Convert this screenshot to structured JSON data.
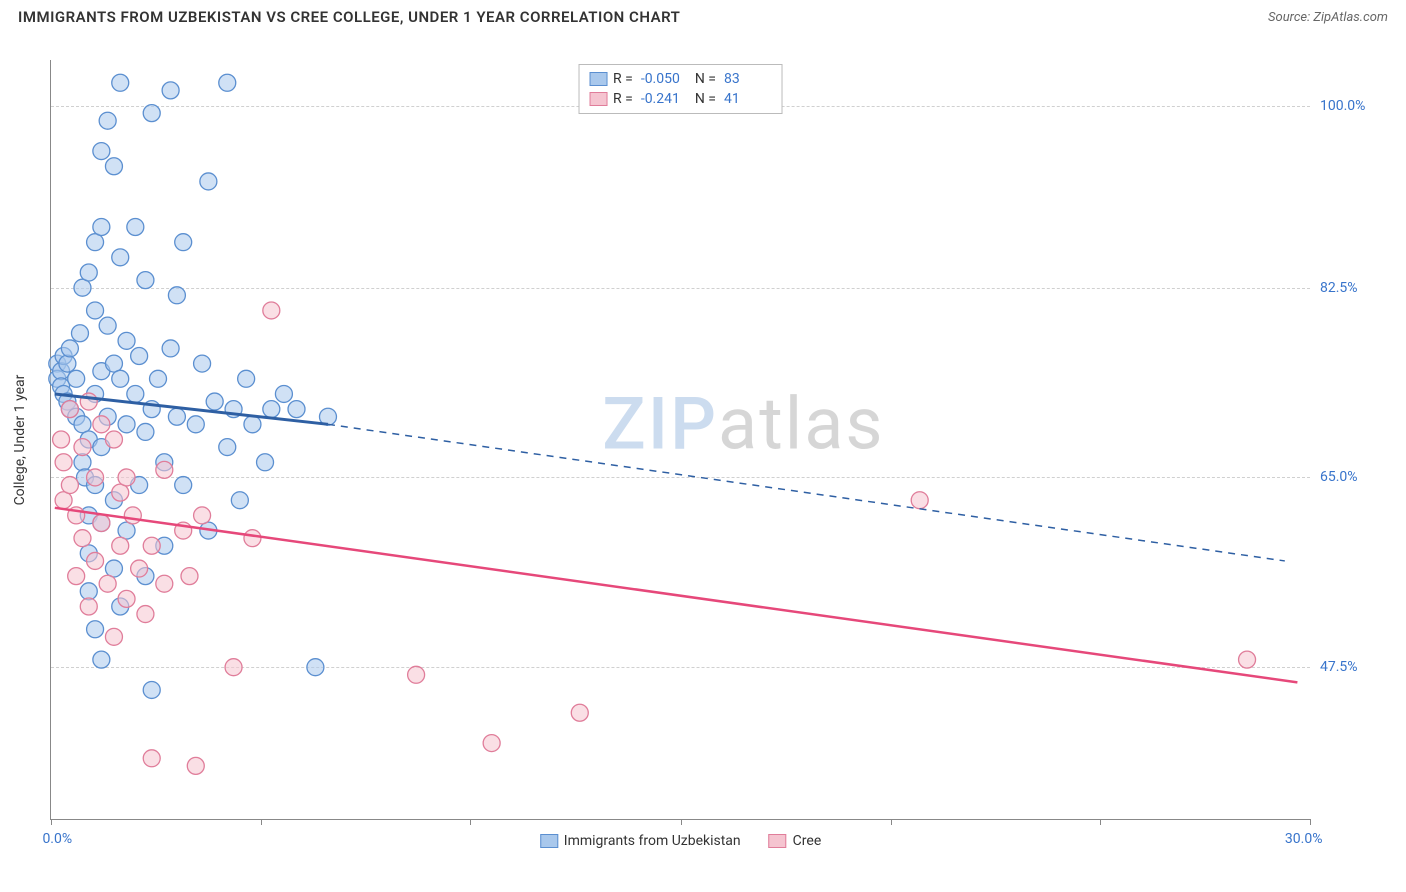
{
  "title": "IMMIGRANTS FROM UZBEKISTAN VS CREE COLLEGE, UNDER 1 YEAR CORRELATION CHART",
  "source": "Source: ZipAtlas.com",
  "ylabel": "College, Under 1 year",
  "watermark": {
    "part1": "ZIP",
    "part2": "atlas"
  },
  "colors": {
    "blue_fill": "#a9c8ec",
    "blue_stroke": "#5b8fd0",
    "blue_line": "#2e5fa3",
    "pink_fill": "#f5c4d0",
    "pink_stroke": "#e07d9a",
    "pink_line": "#e6487a",
    "tick_text": "#3874cb",
    "grid": "#d0d0d0"
  },
  "xaxis": {
    "min": 0.0,
    "max": 30.0,
    "label_min": "0.0%",
    "label_max": "30.0%",
    "ticks_pct": [
      0,
      16.7,
      33.3,
      50,
      66.7,
      83.3,
      100
    ]
  },
  "yaxis": {
    "ticks": [
      {
        "value": 100.0,
        "label": "100.0%",
        "pos_pct": 6.0
      },
      {
        "value": 82.5,
        "label": "82.5%",
        "pos_pct": 30.0
      },
      {
        "value": 65.0,
        "label": "65.0%",
        "pos_pct": 55.0
      },
      {
        "value": 47.5,
        "label": "47.5%",
        "pos_pct": 80.0
      }
    ]
  },
  "legend_top": [
    {
      "color": "blue",
      "r_label": "R =",
      "r": "-0.050",
      "n_label": "N =",
      "n": "83"
    },
    {
      "color": "pink",
      "r_label": "R =",
      "r": "-0.241",
      "n_label": "N =",
      "n": "41"
    }
  ],
  "legend_bottom": [
    {
      "color": "blue",
      "label": "Immigrants from Uzbekistan"
    },
    {
      "color": "pink",
      "label": "Cree"
    }
  ],
  "trend_lines": {
    "blue": {
      "x1_pct": 0.3,
      "y1_pct": 44,
      "x2_pct": 22,
      "y2_pct": 48,
      "x3_pct": 98,
      "y3_pct": 66
    },
    "pink": {
      "x1_pct": 0.3,
      "y1_pct": 59,
      "x2_pct": 99,
      "y2_pct": 82
    }
  },
  "marker": {
    "radius": 8.5,
    "fill_opacity": 0.55,
    "stroke_width": 1.3
  },
  "points_blue": [
    {
      "x": 0.5,
      "y": 40
    },
    {
      "x": 0.5,
      "y": 42
    },
    {
      "x": 0.8,
      "y": 41
    },
    {
      "x": 0.8,
      "y": 43
    },
    {
      "x": 1.0,
      "y": 39
    },
    {
      "x": 1.0,
      "y": 44
    },
    {
      "x": 1.3,
      "y": 40
    },
    {
      "x": 1.3,
      "y": 45
    },
    {
      "x": 1.5,
      "y": 38
    },
    {
      "x": 1.5,
      "y": 46
    },
    {
      "x": 2.0,
      "y": 42
    },
    {
      "x": 2.0,
      "y": 47
    },
    {
      "x": 2.3,
      "y": 36
    },
    {
      "x": 2.5,
      "y": 48
    },
    {
      "x": 2.5,
      "y": 30
    },
    {
      "x": 2.5,
      "y": 53
    },
    {
      "x": 2.7,
      "y": 55
    },
    {
      "x": 3.0,
      "y": 28
    },
    {
      "x": 3.0,
      "y": 50
    },
    {
      "x": 3.0,
      "y": 60
    },
    {
      "x": 3.0,
      "y": 65
    },
    {
      "x": 3.0,
      "y": 70
    },
    {
      "x": 3.5,
      "y": 24
    },
    {
      "x": 3.5,
      "y": 33
    },
    {
      "x": 3.5,
      "y": 44
    },
    {
      "x": 3.5,
      "y": 56
    },
    {
      "x": 3.5,
      "y": 75
    },
    {
      "x": 4.0,
      "y": 12
    },
    {
      "x": 4.0,
      "y": 22
    },
    {
      "x": 4.0,
      "y": 41
    },
    {
      "x": 4.0,
      "y": 51
    },
    {
      "x": 4.0,
      "y": 61
    },
    {
      "x": 4.0,
      "y": 79
    },
    {
      "x": 4.5,
      "y": 8
    },
    {
      "x": 4.5,
      "y": 35
    },
    {
      "x": 4.5,
      "y": 47
    },
    {
      "x": 5.0,
      "y": 14
    },
    {
      "x": 5.0,
      "y": 40
    },
    {
      "x": 5.0,
      "y": 58
    },
    {
      "x": 5.0,
      "y": 67
    },
    {
      "x": 5.5,
      "y": 3
    },
    {
      "x": 5.5,
      "y": 26
    },
    {
      "x": 5.5,
      "y": 42
    },
    {
      "x": 5.5,
      "y": 72
    },
    {
      "x": 6.0,
      "y": 37
    },
    {
      "x": 6.0,
      "y": 48
    },
    {
      "x": 6.0,
      "y": 62
    },
    {
      "x": 6.7,
      "y": 22
    },
    {
      "x": 6.7,
      "y": 44
    },
    {
      "x": 7.0,
      "y": 39
    },
    {
      "x": 7.0,
      "y": 56
    },
    {
      "x": 7.5,
      "y": 29
    },
    {
      "x": 7.5,
      "y": 49
    },
    {
      "x": 7.5,
      "y": 68
    },
    {
      "x": 8.0,
      "y": 7
    },
    {
      "x": 8.0,
      "y": 46
    },
    {
      "x": 8.0,
      "y": 83
    },
    {
      "x": 8.5,
      "y": 42
    },
    {
      "x": 9.0,
      "y": 53
    },
    {
      "x": 9.0,
      "y": 64
    },
    {
      "x": 9.5,
      "y": 4
    },
    {
      "x": 9.5,
      "y": 38
    },
    {
      "x": 10.0,
      "y": 31
    },
    {
      "x": 10.0,
      "y": 47
    },
    {
      "x": 10.5,
      "y": 24
    },
    {
      "x": 10.5,
      "y": 56
    },
    {
      "x": 11.5,
      "y": 48
    },
    {
      "x": 12.0,
      "y": 40
    },
    {
      "x": 12.5,
      "y": 62
    },
    {
      "x": 12.5,
      "y": 16
    },
    {
      "x": 13.0,
      "y": 45
    },
    {
      "x": 14.0,
      "y": 3
    },
    {
      "x": 14.0,
      "y": 51
    },
    {
      "x": 14.5,
      "y": 46
    },
    {
      "x": 15.0,
      "y": 58
    },
    {
      "x": 15.5,
      "y": 42
    },
    {
      "x": 16.0,
      "y": 48
    },
    {
      "x": 17.0,
      "y": 53
    },
    {
      "x": 17.5,
      "y": 46
    },
    {
      "x": 18.5,
      "y": 44
    },
    {
      "x": 19.5,
      "y": 46
    },
    {
      "x": 21.0,
      "y": 80
    },
    {
      "x": 22.0,
      "y": 47
    }
  ],
  "points_pink": [
    {
      "x": 0.8,
      "y": 50
    },
    {
      "x": 1.0,
      "y": 53
    },
    {
      "x": 1.0,
      "y": 58
    },
    {
      "x": 1.5,
      "y": 46
    },
    {
      "x": 1.5,
      "y": 56
    },
    {
      "x": 2.0,
      "y": 60
    },
    {
      "x": 2.0,
      "y": 68
    },
    {
      "x": 2.5,
      "y": 51
    },
    {
      "x": 2.5,
      "y": 63
    },
    {
      "x": 3.0,
      "y": 45
    },
    {
      "x": 3.0,
      "y": 72
    },
    {
      "x": 3.5,
      "y": 55
    },
    {
      "x": 3.5,
      "y": 66
    },
    {
      "x": 4.0,
      "y": 48
    },
    {
      "x": 4.0,
      "y": 61
    },
    {
      "x": 4.5,
      "y": 69
    },
    {
      "x": 5.0,
      "y": 50
    },
    {
      "x": 5.0,
      "y": 76
    },
    {
      "x": 5.5,
      "y": 57
    },
    {
      "x": 5.5,
      "y": 64
    },
    {
      "x": 6.0,
      "y": 55
    },
    {
      "x": 6.0,
      "y": 71
    },
    {
      "x": 6.5,
      "y": 60
    },
    {
      "x": 7.0,
      "y": 67
    },
    {
      "x": 7.5,
      "y": 73
    },
    {
      "x": 8.0,
      "y": 64
    },
    {
      "x": 8.0,
      "y": 92
    },
    {
      "x": 9.0,
      "y": 54
    },
    {
      "x": 9.0,
      "y": 69
    },
    {
      "x": 10.5,
      "y": 62
    },
    {
      "x": 11.0,
      "y": 68
    },
    {
      "x": 11.5,
      "y": 93
    },
    {
      "x": 12.0,
      "y": 60
    },
    {
      "x": 14.5,
      "y": 80
    },
    {
      "x": 16.0,
      "y": 63
    },
    {
      "x": 17.5,
      "y": 33
    },
    {
      "x": 29.0,
      "y": 81
    },
    {
      "x": 35.0,
      "y": 90
    },
    {
      "x": 42.0,
      "y": 86
    },
    {
      "x": 69.0,
      "y": 58
    },
    {
      "x": 95.0,
      "y": 79
    }
  ]
}
